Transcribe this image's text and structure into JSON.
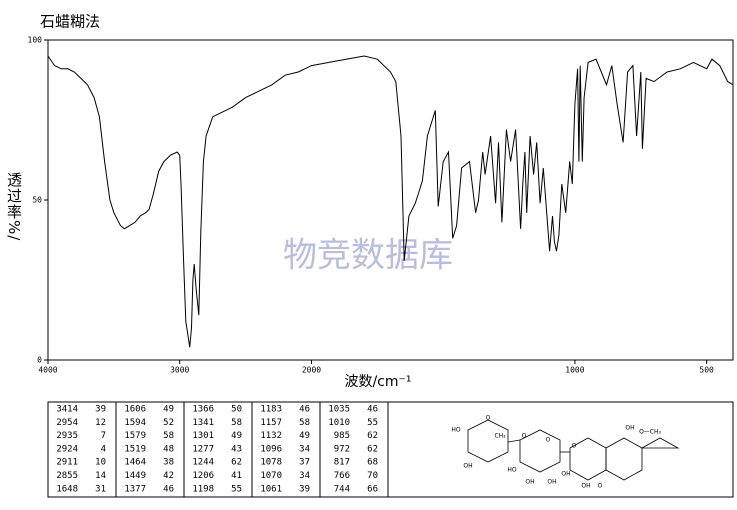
{
  "chart_data": {
    "type": "line",
    "title": "石蜡糊法",
    "x_label": "波数/cm⁻¹",
    "y_label": "透过率%/",
    "watermark": "物竞数据库",
    "xlim": [
      4000,
      400
    ],
    "ylim": [
      0,
      100
    ],
    "xscale": {
      "break": 2000,
      "factor": 2
    },
    "xticks": [
      4000,
      3000,
      2000,
      1000,
      500
    ],
    "yticks": [
      0,
      50,
      100
    ],
    "color": "#000000",
    "x": [
      4000,
      3950,
      3900,
      3850,
      3800,
      3750,
      3700,
      3650,
      3610,
      3570,
      3530,
      3500,
      3475,
      3450,
      3420,
      3380,
      3340,
      3300,
      3260,
      3233,
      3200,
      3160,
      3120,
      3070,
      3020,
      3000,
      2990,
      2970,
      2954,
      2935,
      2924,
      2911,
      2900,
      2890,
      2875,
      2855,
      2840,
      2820,
      2800,
      2750,
      2700,
      2600,
      2500,
      2400,
      2300,
      2200,
      2100,
      2000,
      1900,
      1800,
      1750,
      1700,
      1680,
      1660,
      1648,
      1630,
      1606,
      1594,
      1579,
      1560,
      1530,
      1519,
      1500,
      1480,
      1464,
      1449,
      1430,
      1400,
      1377,
      1366,
      1350,
      1341,
      1320,
      1301,
      1290,
      1277,
      1260,
      1244,
      1225,
      1206,
      1198,
      1190,
      1183,
      1170,
      1157,
      1145,
      1132,
      1120,
      1096,
      1085,
      1078,
      1070,
      1061,
      1050,
      1035,
      1020,
      1010,
      1000,
      990,
      985,
      980,
      972,
      965,
      950,
      920,
      900,
      880,
      860,
      840,
      817,
      800,
      780,
      766,
      750,
      744,
      730,
      700,
      650,
      600,
      550,
      500,
      480,
      450,
      420,
      400
    ],
    "values": [
      95,
      92,
      91,
      91,
      90,
      88,
      86,
      82,
      76,
      62,
      50,
      46,
      44,
      42,
      41,
      42,
      43,
      45,
      46,
      47,
      52,
      59,
      62,
      64,
      65,
      64,
      55,
      30,
      12,
      7,
      4,
      10,
      25,
      30,
      22,
      14,
      40,
      62,
      70,
      76,
      77,
      79,
      82,
      84,
      86,
      89,
      90,
      92,
      93.5,
      95,
      94,
      90,
      87,
      70,
      31,
      45,
      49,
      52,
      56,
      70,
      78,
      48,
      62,
      65,
      38,
      42,
      60,
      62,
      46,
      50,
      65,
      58,
      70,
      49,
      68,
      43,
      72,
      62,
      72,
      41,
      55,
      65,
      46,
      70,
      58,
      68,
      49,
      60,
      34,
      45,
      37,
      34,
      39,
      55,
      46,
      62,
      55,
      80,
      91,
      62,
      92,
      62,
      82,
      93,
      94,
      90,
      86,
      92,
      80,
      68,
      90,
      92,
      70,
      90,
      66,
      88,
      87,
      90,
      91,
      93,
      91,
      94,
      92,
      87,
      86
    ],
    "table": [
      [
        [
          "3414",
          "39"
        ],
        [
          "2954",
          "12"
        ],
        [
          "2935",
          "7"
        ],
        [
          "2924",
          "4"
        ],
        [
          "2911",
          "10"
        ],
        [
          "2855",
          "14"
        ],
        [
          "1648",
          "31"
        ]
      ],
      [
        [
          "1606",
          "49"
        ],
        [
          "1594",
          "52"
        ],
        [
          "1579",
          "58"
        ],
        [
          "1519",
          "48"
        ],
        [
          "1464",
          "38"
        ],
        [
          "1449",
          "42"
        ],
        [
          "1377",
          "46"
        ]
      ],
      [
        [
          "1366",
          "50"
        ],
        [
          "1341",
          "58"
        ],
        [
          "1301",
          "49"
        ],
        [
          "1277",
          "43"
        ],
        [
          "1244",
          "62"
        ],
        [
          "1206",
          "41"
        ],
        [
          "1198",
          "55"
        ]
      ],
      [
        [
          "1183",
          "46"
        ],
        [
          "1157",
          "58"
        ],
        [
          "1132",
          "49"
        ],
        [
          "1096",
          "34"
        ],
        [
          "1078",
          "37"
        ],
        [
          "1070",
          "34"
        ],
        [
          "1061",
          "39"
        ]
      ],
      [
        [
          "1035",
          "46"
        ],
        [
          "1010",
          "55"
        ],
        [
          "985",
          "62"
        ],
        [
          "972",
          "62"
        ],
        [
          "817",
          "68"
        ],
        [
          "766",
          "70"
        ],
        [
          "744",
          "66"
        ]
      ]
    ],
    "structure_labels": [
      "HO",
      "OH",
      "O",
      "CH₃",
      "O",
      "O",
      "HO",
      "OH",
      "OH",
      "O",
      "OH",
      "OH",
      "O",
      "OH",
      "O—CH₃"
    ]
  }
}
